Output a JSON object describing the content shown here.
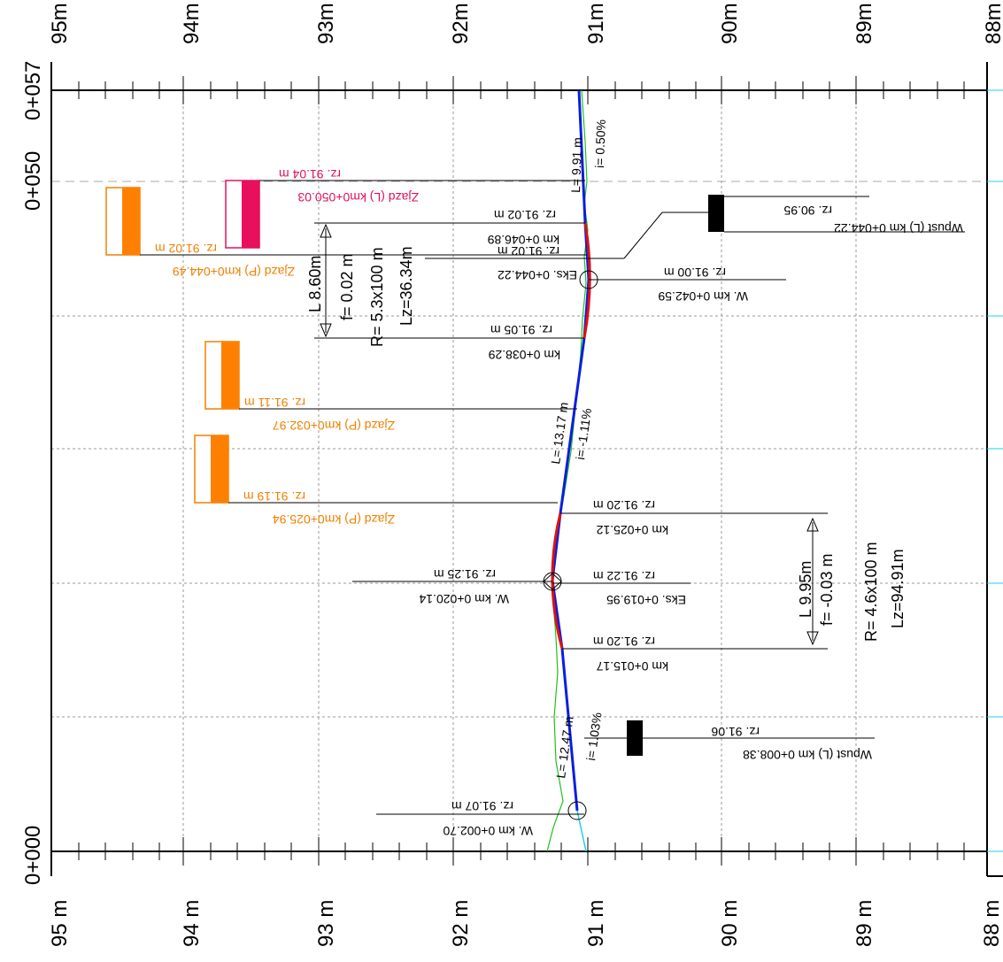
{
  "axis": {
    "top_elev": [
      "95m",
      "94m",
      "93m",
      "92m",
      "91m",
      "90m",
      "89m",
      "88m"
    ],
    "bottom_elev": [
      "95 m",
      "94 m",
      "93 m",
      "92 m",
      "91 m",
      "90 m",
      "89 m",
      "88 m"
    ],
    "chainage_top": "0+057",
    "chainage_050": "0+050",
    "chainage_000": "0+000"
  },
  "vertices": [
    {
      "label": "W. km 0+002.70",
      "elev": "rz. 91.07 m"
    },
    {
      "label": "W. km 0+020.14",
      "elev": "rz. 91.25 m"
    },
    {
      "label": "W. km 0+042.59",
      "elev": "rz. 91.00 m"
    }
  ],
  "grades": [
    {
      "length": "L= 12.47 m",
      "slope": "i= 1.03%"
    },
    {
      "length": "L= 13.17 m",
      "slope": "i= -1.11%"
    },
    {
      "length": "L= 9.91 m",
      "slope": "i= 0.50%"
    }
  ],
  "curves": [
    {
      "start_km": "km 0+015.17",
      "start_elev": "rz. 91.20 m",
      "ext_km": "Eks. 0+019.95",
      "ext_elev": "rz. 91.22 m",
      "end_km": "km 0+025.12",
      "end_elev": "rz. 91.20 m",
      "L": "L 9.95m",
      "f": "f= -0.03 m",
      "R": "R= 4.6x100 m",
      "Lz": "Lz=94.91m"
    },
    {
      "start_km": "km 0+038.29",
      "start_elev": "rz. 91.05 m",
      "ext_km": "Eks. 0+044.22",
      "ext_elev": "rz. 91.02 m",
      "end_km": "km 0+046.89",
      "end_elev": "rz. 91.02 m",
      "L": "L 8.60m",
      "f": "f= 0.02 m",
      "R": "R= 5.3x100 m",
      "Lz": "Lz=36.34m"
    }
  ],
  "inlets": [
    {
      "label": "Wpust (L) km 0+008.38",
      "elev": "rz. 91.06"
    },
    {
      "label": "Wpust (L) km 0+044.22",
      "elev": "rz. 90.95"
    }
  ],
  "driveways": [
    {
      "label": "Zjazd (P) km0+025.94",
      "elev": "rz. 91.19 m"
    },
    {
      "label": "Zjazd (P) km0+032.97",
      "elev": "rz. 91.11 m"
    },
    {
      "label": "Zjazd (P) km0+044.49",
      "elev": "rz. 91.02 m"
    },
    {
      "label": "Zjazd (L) km0+050.03",
      "elev": "rz. 91.04 m"
    }
  ],
  "colors": {
    "grade_line": "#0a1ee0",
    "curve": "#e01010",
    "terrain": "#20c020",
    "driveway_right": "#ff8000",
    "driveway_left": "#e8105a",
    "inlet": "#000000",
    "cyan": "#20d0e8"
  }
}
